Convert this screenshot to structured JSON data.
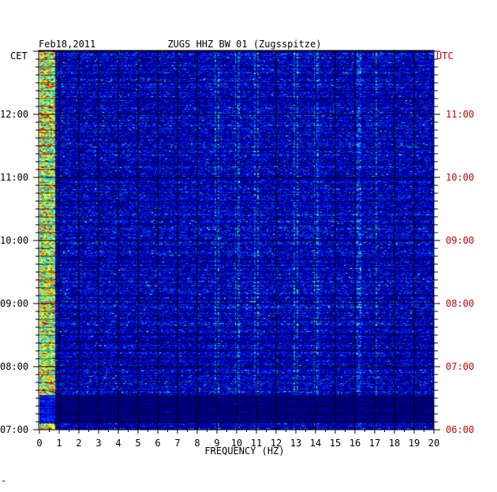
{
  "header": {
    "date": "Feb18,2011",
    "station": "ZUGS HHZ BW 01 (Zugsspitze)",
    "left_zone": "CET",
    "right_zone": "UTC"
  },
  "footer": {
    "mark": "‴"
  },
  "colors": {
    "background": "#ffffff",
    "frame": "#000000",
    "grid": "#000000",
    "utc_text": "#cc0000",
    "cet_text": "#000000",
    "colormap": [
      "#00007a",
      "#0000d0",
      "#0040ff",
      "#00b0ff",
      "#30ffd0",
      "#ffff00",
      "#ff6000",
      "#c00000"
    ]
  },
  "chart_data": {
    "type": "heatmap",
    "title": "ZUGS HHZ BW 01 (Zugsspitze)",
    "date": "Feb18,2011",
    "xlabel": "FREQUENCY (HZ)",
    "xlim": [
      0,
      20
    ],
    "x_ticks": [
      "0",
      "1",
      "2",
      "3",
      "4",
      "5",
      "6",
      "7",
      "8",
      "9",
      "10",
      "11",
      "12",
      "13",
      "14",
      "15",
      "16",
      "17",
      "18",
      "19",
      "20"
    ],
    "y_axis_left": {
      "label": "CET",
      "ticks": [
        "07:00",
        "08:00",
        "09:00",
        "10:00",
        "11:00",
        "12:00"
      ],
      "hours": [
        7,
        8,
        9,
        10,
        11,
        12
      ]
    },
    "y_axis_right": {
      "label": "UTC",
      "ticks": [
        "06:00",
        "07:00",
        "08:00",
        "09:00",
        "10:00",
        "11:00"
      ],
      "hours": [
        6,
        7,
        8,
        9,
        10,
        11
      ]
    },
    "time_range_cet_hours": [
      7.0,
      13.0
    ],
    "time_runs": "bottom-to-top",
    "strong_bands_hz": [
      0.3,
      9.0,
      10.0,
      11.0,
      13.0,
      14.0,
      16.2,
      17.0
    ],
    "intensity_scale": "blue (low) to red (high)"
  }
}
